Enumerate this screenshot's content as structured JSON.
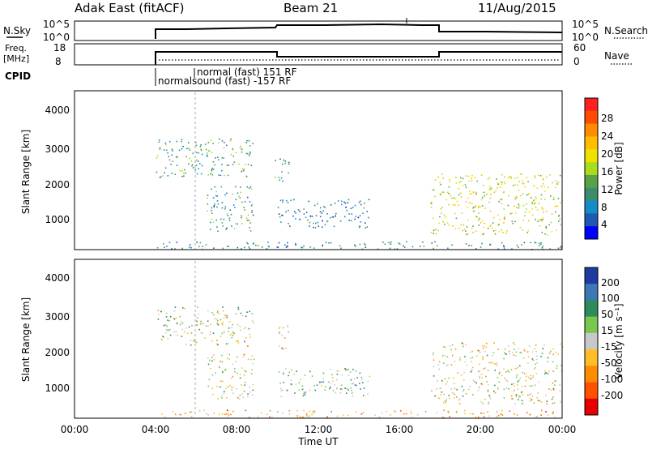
{
  "header": {
    "station": "Adak East (fitACF)",
    "beam": "Beam 21",
    "date": "11/Aug/2015"
  },
  "strips": {
    "nsky_label": "N.Sky",
    "nsky_ticks": [
      "10^5",
      "10^0"
    ],
    "nsearch_label": "N.Search",
    "nsearch_ticks": [
      "10^5",
      "10^0"
    ],
    "freq_label_1": "Freq.",
    "freq_label_2": "[MHz]",
    "freq_ticks": [
      "18",
      "8"
    ],
    "nave_label": "Nave",
    "nave_ticks": [
      "60",
      "0"
    ],
    "cpid_label": "CPID",
    "cpid_entries": [
      "normal (fast) 151 RF",
      "normalsound (fast) -157 RF"
    ]
  },
  "colorbars": {
    "power": {
      "label": "Power [dB]",
      "ticks": [
        "28",
        "24",
        "20",
        "16",
        "12",
        "8",
        "4"
      ],
      "colors": [
        "#ff2020",
        "#ff4a00",
        "#ff8c00",
        "#ffbe00",
        "#f0e000",
        "#aadc1e",
        "#5aa046",
        "#3c8c6e",
        "#148cc8",
        "#1e5ab4",
        "#0000ff"
      ]
    },
    "velocity": {
      "label": "Velocity [m s⁻¹]",
      "ticks": [
        "200",
        "100",
        "50",
        "15",
        "-15",
        "-50",
        "-100",
        "-200"
      ],
      "colors": [
        "#1e3ca0",
        "#3c78b4",
        "#2d8c5a",
        "#78c850",
        "#c8c8c8",
        "#ffbe28",
        "#ff8c00",
        "#ff5000",
        "#e60000"
      ]
    }
  },
  "chart_data": [
    {
      "type": "heatmap",
      "panel": "power",
      "ylabel": "Slant Range [km]",
      "ylim": [
        180,
        4600
      ],
      "yticks": [
        "4000",
        "3000",
        "2000",
        "1000"
      ],
      "xlim_hours": [
        0,
        24
      ],
      "regions": [
        {
          "t0": 4.0,
          "t1": 8.8,
          "r0": 2200,
          "r1": 3300,
          "level": 0.35
        },
        {
          "t0": 6.5,
          "t1": 8.8,
          "r0": 700,
          "r1": 2000,
          "level": 0.3
        },
        {
          "t0": 9.8,
          "t1": 10.6,
          "r0": 2100,
          "r1": 2800,
          "level": 0.3
        },
        {
          "t0": 10.0,
          "t1": 14.5,
          "r0": 800,
          "r1": 1600,
          "level": 0.2
        },
        {
          "t0": 17.5,
          "t1": 24.0,
          "r0": 600,
          "r1": 2300,
          "level": 0.55
        },
        {
          "t0": 4.0,
          "t1": 24.0,
          "r0": 200,
          "r1": 420,
          "level": 0.25
        }
      ]
    },
    {
      "type": "heatmap",
      "panel": "velocity",
      "ylabel": "Slant Range [km]",
      "ylim": [
        180,
        4600
      ],
      "yticks": [
        "4000",
        "3000",
        "2000",
        "1000"
      ],
      "xlabel": "Time UT",
      "xticks": [
        "00:00",
        "04:00",
        "08:00",
        "12:00",
        "16:00",
        "20:00",
        "00:00"
      ],
      "xlim_hours": [
        0,
        24
      ],
      "regions": [
        {
          "t0": 4.0,
          "t1": 8.8,
          "r0": 2200,
          "r1": 3300,
          "level": 0.45
        },
        {
          "t0": 6.5,
          "t1": 8.8,
          "r0": 700,
          "r1": 2000,
          "level": 0.5
        },
        {
          "t0": 9.8,
          "t1": 10.6,
          "r0": 2100,
          "r1": 2800,
          "level": 0.5
        },
        {
          "t0": 10.0,
          "t1": 14.5,
          "r0": 800,
          "r1": 1600,
          "level": 0.35
        },
        {
          "t0": 17.5,
          "t1": 24.0,
          "r0": 600,
          "r1": 2300,
          "level": 0.5
        },
        {
          "t0": 4.0,
          "t1": 24.0,
          "r0": 200,
          "r1": 420,
          "level": 0.7
        }
      ]
    }
  ]
}
